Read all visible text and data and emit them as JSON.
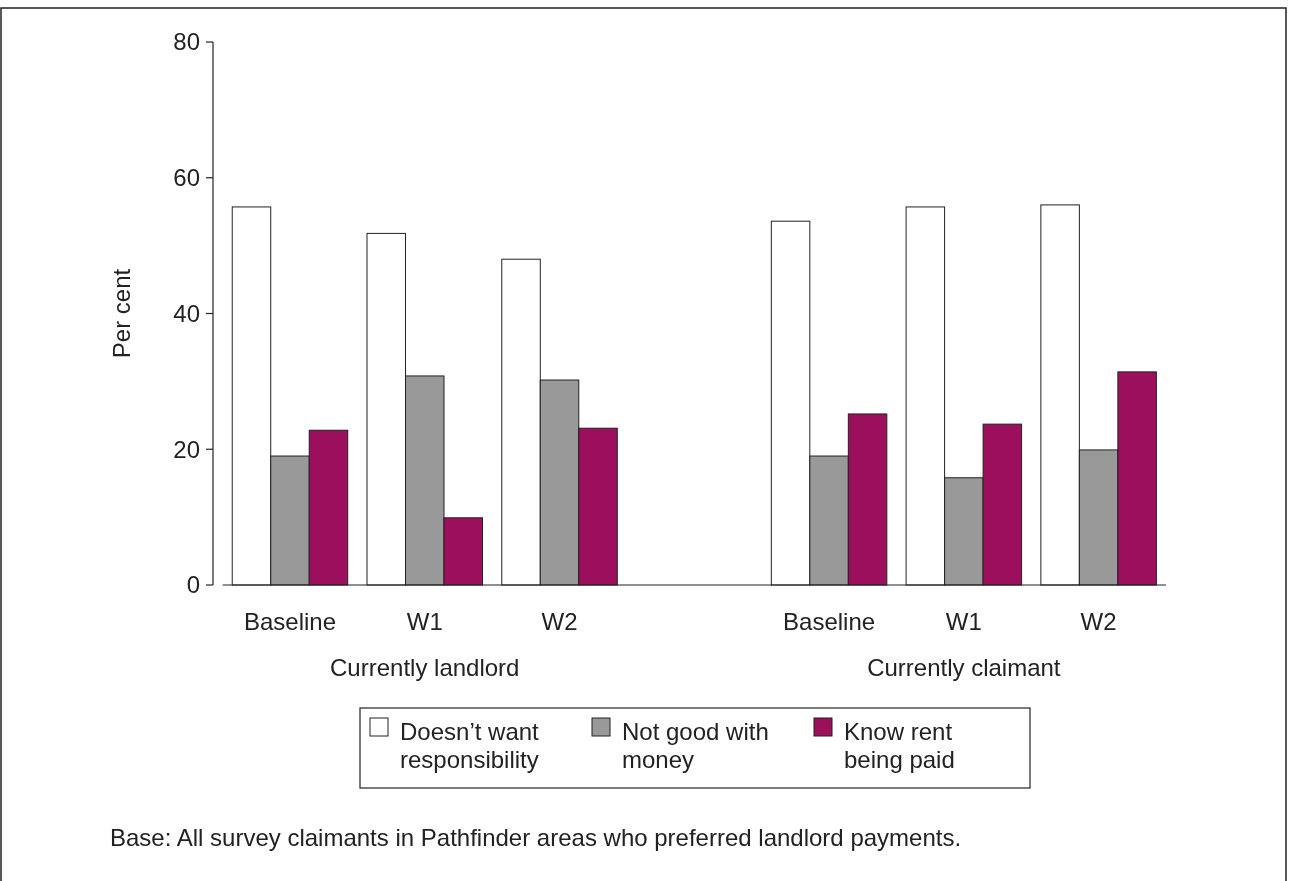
{
  "chart_data": {
    "type": "bar",
    "ylabel": "Per cent",
    "categories": [
      "Baseline",
      "W1",
      "W2",
      null,
      "Baseline",
      "W1",
      "W2"
    ],
    "series": [
      {
        "name": "Doesn’t want responsibility",
        "color": "#ffffff",
        "values": [
          55.7,
          51.8,
          48.0,
          null,
          53.6,
          55.7,
          56.0
        ]
      },
      {
        "name": "Not good with money",
        "color": "#999999",
        "values": [
          19.0,
          30.8,
          30.2,
          null,
          19.0,
          15.8,
          19.9
        ]
      },
      {
        "name": "Know rent being paid",
        "color": "#9b0f5c",
        "values": [
          22.8,
          9.9,
          23.1,
          null,
          25.2,
          23.7,
          31.4
        ]
      }
    ],
    "ylim": [
      0,
      80
    ],
    "yticks": [
      0,
      20,
      40,
      60,
      80
    ],
    "grid": false,
    "legend": "bottom",
    "annotations": [
      "Currently landlord",
      "Currently claimant",
      "Base: All survey claimants in Pathfinder areas who preferred landlord payments."
    ]
  }
}
